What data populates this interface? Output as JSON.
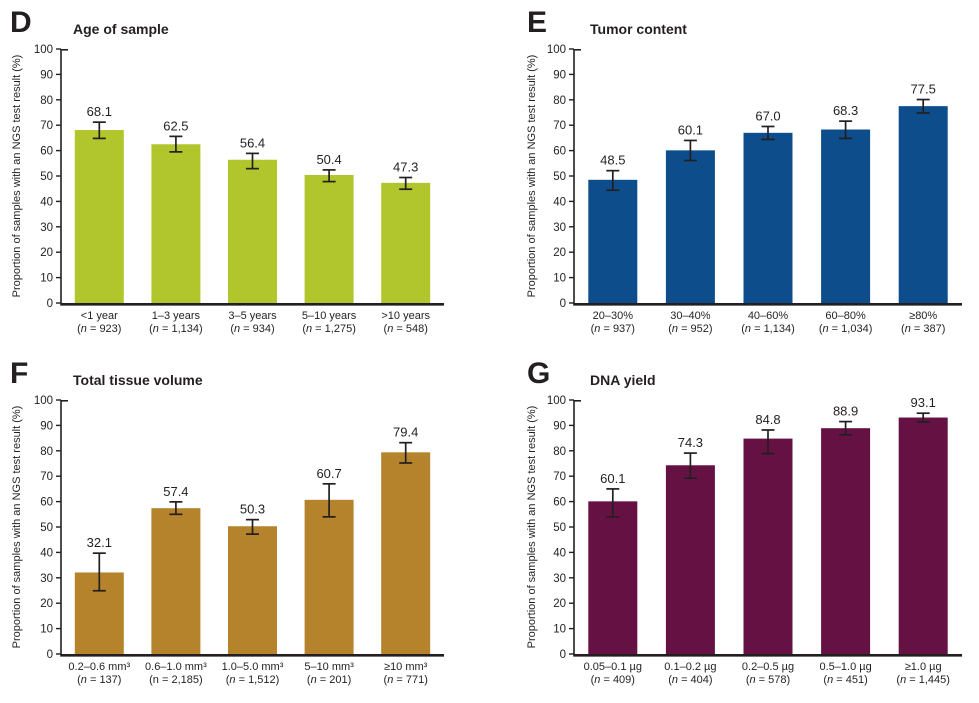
{
  "figure": {
    "background": "#ffffff",
    "ink_color": "#231f20",
    "y_ticks": [
      0,
      10,
      20,
      30,
      40,
      50,
      60,
      70,
      80,
      90,
      100
    ],
    "ylim": [
      0,
      100
    ],
    "y_axis_label": "Proportion of samples with an NGS test result (%)"
  },
  "chart_data": [
    {
      "type": "bar",
      "panel": "D",
      "title": "Age of sample",
      "xlabel": "",
      "ylabel": "Proportion of samples with an NGS test result (%)",
      "ylim": [
        0,
        100
      ],
      "grid": false,
      "bar_color": "#b0c62c",
      "categories": [
        "<1 year",
        "1–3 years",
        "3–5 years",
        "5–10 years",
        ">10 years"
      ],
      "n_counts": [
        "923",
        "1,134",
        "934",
        "1,275",
        "548"
      ],
      "n_italic": [
        true,
        true,
        true,
        true,
        true
      ],
      "values": [
        68.1,
        62.5,
        56.4,
        50.4,
        47.3
      ],
      "error_low": [
        64.8,
        59.5,
        52.9,
        47.8,
        44.8
      ],
      "error_high": [
        71.2,
        65.6,
        58.9,
        52.4,
        49.4
      ]
    },
    {
      "type": "bar",
      "panel": "E",
      "title": "Tumor content",
      "xlabel": "",
      "ylabel": "Proportion of samples with an NGS test result (%)",
      "ylim": [
        0,
        100
      ],
      "grid": false,
      "bar_color": "#0d4d8b",
      "categories": [
        "20–30%",
        "30–40%",
        "40–60%",
        "60–80%",
        "≥80%"
      ],
      "n_counts": [
        "937",
        "952",
        "1,134",
        "1,034",
        "387"
      ],
      "n_italic": [
        true,
        true,
        true,
        true,
        true
      ],
      "values": [
        48.5,
        60.1,
        67.0,
        68.3,
        77.5
      ],
      "error_low": [
        44.4,
        56.1,
        64.4,
        64.8,
        74.8
      ],
      "error_high": [
        52.1,
        64.0,
        69.5,
        71.6,
        80.1
      ]
    },
    {
      "type": "bar",
      "panel": "F",
      "title": "Total tissue volume",
      "xlabel": "",
      "ylabel": "Proportion of samples with an NGS test result (%)",
      "ylim": [
        0,
        100
      ],
      "grid": false,
      "bar_color": "#b4832b",
      "categories": [
        "0.2–0.6 mm³",
        "0.6–1.0 mm³",
        "1.0–5.0 mm³",
        "5–10 mm³",
        "≥10 mm³"
      ],
      "n_counts": [
        "137",
        "2,185",
        "1,512",
        "201",
        "771"
      ],
      "n_italic": [
        true,
        false,
        true,
        true,
        true
      ],
      "values": [
        32.1,
        57.4,
        50.3,
        60.7,
        79.4
      ],
      "error_low": [
        24.9,
        55.0,
        47.2,
        54.0,
        75.2
      ],
      "error_high": [
        39.7,
        59.9,
        52.9,
        67.0,
        83.2
      ]
    },
    {
      "type": "bar",
      "panel": "G",
      "title": "DNA yield",
      "xlabel": "",
      "ylabel": "Proportion of samples with an NGS test result (%)",
      "ylim": [
        0,
        100
      ],
      "grid": false,
      "bar_color": "#661143",
      "categories": [
        "0.05–0.1 µg",
        "0.1–0.2 µg",
        "0.2–0.5 µg",
        "0.5–1.0 µg",
        "≥1.0 µg"
      ],
      "n_counts": [
        "409",
        "404",
        "578",
        "451",
        "1,445"
      ],
      "n_italic": [
        true,
        true,
        true,
        true,
        true
      ],
      "values": [
        60.1,
        74.3,
        84.8,
        88.9,
        93.1
      ],
      "error_low": [
        54.0,
        69.2,
        78.9,
        86.3,
        91.4
      ],
      "error_high": [
        65.0,
        79.1,
        88.2,
        91.5,
        94.8
      ]
    }
  ]
}
